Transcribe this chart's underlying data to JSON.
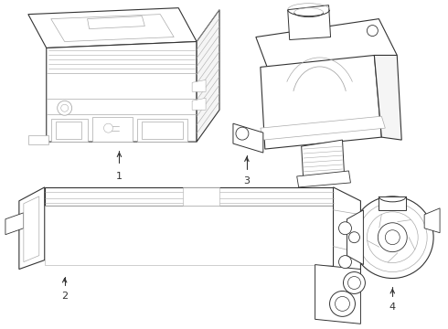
{
  "background_color": "#ffffff",
  "line_color": "#aaaaaa",
  "dark_line_color": "#333333",
  "fig_width": 4.9,
  "fig_height": 3.6,
  "dpi": 100
}
